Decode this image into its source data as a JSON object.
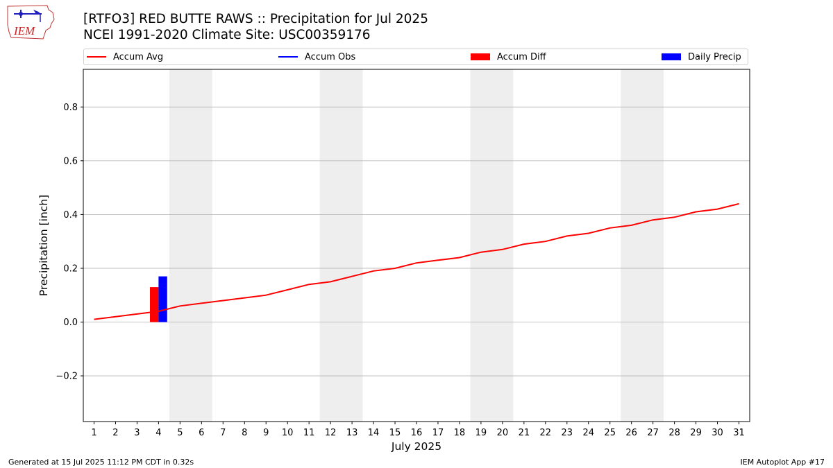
{
  "logo": {
    "text": "IEM",
    "name": "iem-logo"
  },
  "header": {
    "title": "[RTFO3] RED BUTTE RAWS :: Precipitation for Jul 2025",
    "subtitle": "NCEI 1991-2020 Climate Site: USC00359176"
  },
  "footer": {
    "left": "Generated at 15 Jul 2025 11:12 PM CDT in 0.32s",
    "right": "IEM Autoplot App #17"
  },
  "colors": {
    "accum_avg": "#ff0000",
    "accum_obs": "#0000ff",
    "accum_diff": "#ff0000",
    "daily_precip": "#0000ff",
    "weekend_band": "#eeeeee",
    "grid": "#b0b0b0"
  },
  "chart_data": {
    "type": "line",
    "xlabel": "July 2025",
    "ylabel": "Precipitation [inch]",
    "x": [
      1,
      2,
      3,
      4,
      5,
      6,
      7,
      8,
      9,
      10,
      11,
      12,
      13,
      14,
      15,
      16,
      17,
      18,
      19,
      20,
      21,
      22,
      23,
      24,
      25,
      26,
      27,
      28,
      29,
      30,
      31
    ],
    "xlim": [
      0.5,
      31.5
    ],
    "ylim": [
      -0.37,
      0.94
    ],
    "yticks": [
      -0.2,
      0.0,
      0.2,
      0.4,
      0.6,
      0.8
    ],
    "ytick_labels": [
      "−0.2",
      "0.0",
      "0.2",
      "0.4",
      "0.6",
      "0.8"
    ],
    "grid": "horizontal",
    "legend": [
      {
        "name": "Accum Avg",
        "kind": "line",
        "color": "#ff0000"
      },
      {
        "name": "Accum Obs",
        "kind": "line",
        "color": "#0000ff"
      },
      {
        "name": "Accum Diff",
        "kind": "bar",
        "color": "#ff0000"
      },
      {
        "name": "Daily Precip",
        "kind": "bar",
        "color": "#0000ff"
      }
    ],
    "legend_placement": "top",
    "weekend_shading": [
      [
        5,
        6
      ],
      [
        12,
        13
      ],
      [
        19,
        20
      ],
      [
        26,
        27
      ]
    ],
    "series": [
      {
        "name": "Accum Avg",
        "kind": "line",
        "x": [
          1,
          2,
          3,
          4,
          5,
          6,
          7,
          8,
          9,
          10,
          11,
          12,
          13,
          14,
          15,
          16,
          17,
          18,
          19,
          20,
          21,
          22,
          23,
          24,
          25,
          26,
          27,
          28,
          29,
          30,
          31
        ],
        "values": [
          0.01,
          0.02,
          0.03,
          0.04,
          0.06,
          0.07,
          0.08,
          0.09,
          0.1,
          0.12,
          0.14,
          0.15,
          0.17,
          0.19,
          0.2,
          0.22,
          0.23,
          0.24,
          0.26,
          0.27,
          0.29,
          0.3,
          0.32,
          0.33,
          0.35,
          0.36,
          0.38,
          0.39,
          0.41,
          0.42,
          0.44
        ]
      },
      {
        "name": "Accum Diff",
        "kind": "bar",
        "x": [
          4
        ],
        "values": [
          0.13
        ]
      },
      {
        "name": "Daily Precip",
        "kind": "bar",
        "x": [
          4
        ],
        "values": [
          0.17
        ]
      }
    ]
  }
}
